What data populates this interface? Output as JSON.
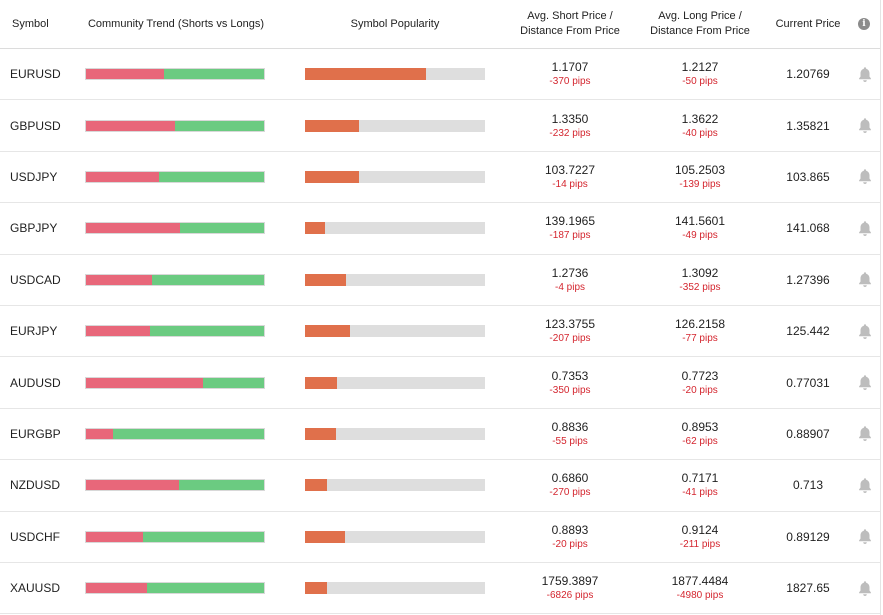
{
  "header": {
    "symbol": "Symbol",
    "trend": "Community Trend (Shorts vs Longs)",
    "popularity": "Symbol Popularity",
    "short_line1": "Avg. Short Price /",
    "short_line2": "Distance From Price",
    "long_line1": "Avg. Long Price /",
    "long_line2": "Distance From Price",
    "current": "Current Price",
    "info_icon": "info-icon"
  },
  "colors": {
    "short": "#e8677a",
    "long": "#6bcb81",
    "popularity": "#e0704b",
    "pips": "#d4262f"
  },
  "rows": [
    {
      "symbol": "EURUSD",
      "short_pct": 44,
      "popularity_pct": 67,
      "avg_short": "1.1707",
      "short_pips": "-370 pips",
      "avg_long": "1.2127",
      "long_pips": "-50 pips",
      "current": "1.20769"
    },
    {
      "symbol": "GBPUSD",
      "short_pct": 50,
      "popularity_pct": 30,
      "avg_short": "1.3350",
      "short_pips": "-232 pips",
      "avg_long": "1.3622",
      "long_pips": "-40 pips",
      "current": "1.35821"
    },
    {
      "symbol": "USDJPY",
      "short_pct": 41,
      "popularity_pct": 30,
      "avg_short": "103.7227",
      "short_pips": "-14 pips",
      "avg_long": "105.2503",
      "long_pips": "-139 pips",
      "current": "103.865"
    },
    {
      "symbol": "GBPJPY",
      "short_pct": 53,
      "popularity_pct": 11,
      "avg_short": "139.1965",
      "short_pips": "-187 pips",
      "avg_long": "141.5601",
      "long_pips": "-49 pips",
      "current": "141.068"
    },
    {
      "symbol": "USDCAD",
      "short_pct": 37,
      "popularity_pct": 23,
      "avg_short": "1.2736",
      "short_pips": "-4 pips",
      "avg_long": "1.3092",
      "long_pips": "-352 pips",
      "current": "1.27396"
    },
    {
      "symbol": "EURJPY",
      "short_pct": 36,
      "popularity_pct": 25,
      "avg_short": "123.3755",
      "short_pips": "-207 pips",
      "avg_long": "126.2158",
      "long_pips": "-77 pips",
      "current": "125.442"
    },
    {
      "symbol": "AUDUSD",
      "short_pct": 66,
      "popularity_pct": 18,
      "avg_short": "0.7353",
      "short_pips": "-350 pips",
      "avg_long": "0.7723",
      "long_pips": "-20 pips",
      "current": "0.77031"
    },
    {
      "symbol": "EURGBP",
      "short_pct": 15,
      "popularity_pct": 17,
      "avg_short": "0.8836",
      "short_pips": "-55 pips",
      "avg_long": "0.8953",
      "long_pips": "-62 pips",
      "current": "0.88907"
    },
    {
      "symbol": "NZDUSD",
      "short_pct": 52,
      "popularity_pct": 12,
      "avg_short": "0.6860",
      "short_pips": "-270 pips",
      "avg_long": "0.7171",
      "long_pips": "-41 pips",
      "current": "0.713"
    },
    {
      "symbol": "USDCHF",
      "short_pct": 32,
      "popularity_pct": 22,
      "avg_short": "0.8893",
      "short_pips": "-20 pips",
      "avg_long": "0.9124",
      "long_pips": "-211 pips",
      "current": "0.89129"
    },
    {
      "symbol": "XAUUSD",
      "short_pct": 34,
      "popularity_pct": 12,
      "avg_short": "1759.3897",
      "short_pips": "-6826 pips",
      "avg_long": "1877.4484",
      "long_pips": "-4980 pips",
      "current": "1827.65"
    }
  ]
}
